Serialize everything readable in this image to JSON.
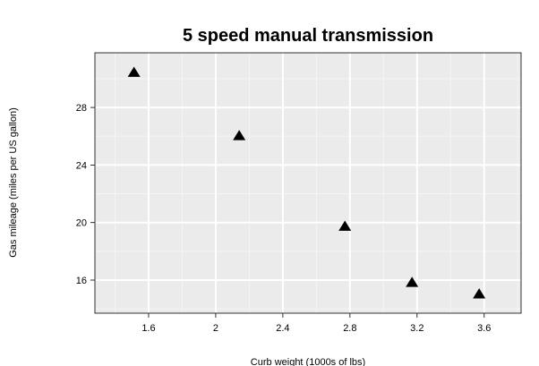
{
  "chart_data": {
    "type": "scatter",
    "title": "5 speed manual transmission",
    "xlabel": "Curb weight (1000s of lbs)",
    "ylabel": "Gas mileage (miles per US gallon)",
    "xlim": [
      1.28,
      3.82
    ],
    "ylim": [
      13.7,
      31.8
    ],
    "x_ticks": [
      1.6,
      2.0,
      2.4,
      2.8,
      3.2,
      3.6
    ],
    "x_tick_labels": [
      "1.6",
      "2",
      "2.4",
      "2.8",
      "3.2",
      "3.6"
    ],
    "y_ticks": [
      16,
      20,
      24,
      28
    ],
    "y_tick_labels": [
      "16",
      "20",
      "24",
      "28"
    ],
    "grid": true,
    "background": "#ebebeb",
    "marker": "triangle",
    "marker_color": "#000000",
    "points": [
      {
        "x": 1.513,
        "y": 30.4
      },
      {
        "x": 2.14,
        "y": 26.0
      },
      {
        "x": 2.77,
        "y": 19.7
      },
      {
        "x": 3.17,
        "y": 15.8
      },
      {
        "x": 3.57,
        "y": 15.0
      }
    ]
  }
}
